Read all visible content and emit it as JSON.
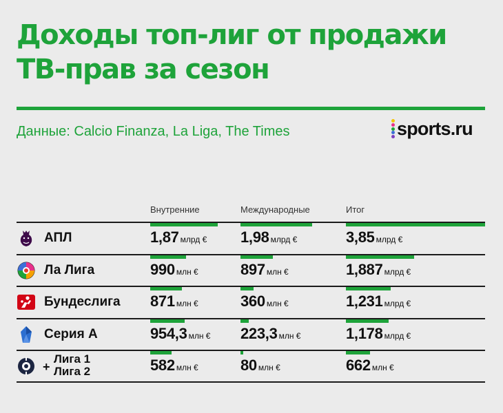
{
  "header": {
    "title_line1": "Доходы топ-лиг от продажи",
    "title_line2": "ТВ-прав за сезон",
    "source": "Данные: Calcio Finanza, La Liga, The Times",
    "logo_text": "sports.ru",
    "logo_dot_colors": [
      "#f5c400",
      "#e8308a",
      "#1ea33a",
      "#3d6fd8",
      "#7b3fbf"
    ]
  },
  "colors": {
    "accent": "#1ea33a",
    "separator": "#1a1a1a",
    "background": "#ebebeb"
  },
  "chart_data": {
    "type": "table",
    "columns": [
      "Внутренние",
      "Международные",
      "Итог"
    ],
    "rows": [
      {
        "league": "АПЛ",
        "icon": "premier-league-lion-icon",
        "values": [
          {
            "num": "1,87",
            "unit": "млрд €",
            "eur_mln": 1870
          },
          {
            "num": "1,98",
            "unit": "млрд €",
            "eur_mln": 1980
          },
          {
            "num": "3,85",
            "unit": "млрд €",
            "eur_mln": 3850
          }
        ]
      },
      {
        "league": "Ла Лига",
        "icon": "laliga-ball-icon",
        "values": [
          {
            "num": "990",
            "unit": "млн €",
            "eur_mln": 990
          },
          {
            "num": "897",
            "unit": "млн €",
            "eur_mln": 897
          },
          {
            "num": "1,887",
            "unit": "млрд €",
            "eur_mln": 1887
          }
        ]
      },
      {
        "league": "Бундеслига",
        "icon": "bundesliga-player-icon",
        "values": [
          {
            "num": "871",
            "unit": "млн €",
            "eur_mln": 871
          },
          {
            "num": "360",
            "unit": "млн €",
            "eur_mln": 360
          },
          {
            "num": "1,231",
            "unit": "млрд €",
            "eur_mln": 1231
          }
        ]
      },
      {
        "league": "Серия А",
        "icon": "serie-a-icon",
        "values": [
          {
            "num": "954,3",
            "unit": "млн €",
            "eur_mln": 954.3
          },
          {
            "num": "223,3",
            "unit": "млн €",
            "eur_mln": 223.3
          },
          {
            "num": "1,178",
            "unit": "млрд €",
            "eur_mln": 1178
          }
        ]
      },
      {
        "league": "Лига 1\nЛига 2",
        "league_line1": "Лига 1",
        "league_line2": "Лига 2",
        "prefix": "+",
        "icon": "ligue-1-icon",
        "values": [
          {
            "num": "582",
            "unit": "млн €",
            "eur_mln": 582
          },
          {
            "num": "80",
            "unit": "млн €",
            "eur_mln": 80
          },
          {
            "num": "662",
            "unit": "млн €",
            "eur_mln": 662
          }
        ]
      }
    ]
  }
}
